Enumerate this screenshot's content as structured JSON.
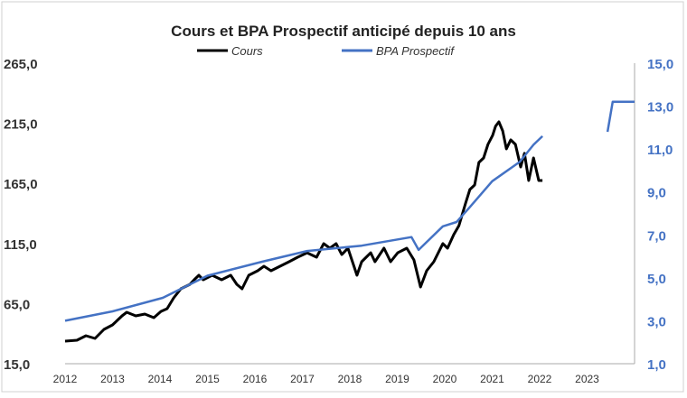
{
  "chart_data": {
    "type": "line",
    "title": "Cours et BPA Prospectif anticipé depuis 10 ans",
    "legend_position": "top",
    "grid": false,
    "x_ticks": [
      "2012",
      "2013",
      "2014",
      "2015",
      "2016",
      "2017",
      "2018",
      "2019",
      "2020",
      "2021",
      "2022",
      "2023"
    ],
    "xlim": [
      2012,
      2024
    ],
    "y_left": {
      "ylim": [
        15,
        265
      ],
      "ticks": [
        "15,0",
        "65,0",
        "115,0",
        "165,0",
        "215,0",
        "265,0"
      ],
      "values": [
        15,
        65,
        115,
        165,
        215,
        265
      ]
    },
    "y_right": {
      "ylim": [
        1,
        15
      ],
      "ticks": [
        "1,0",
        "3,0",
        "5,0",
        "7,0",
        "9,0",
        "11,0",
        "13,0",
        "15,0"
      ],
      "values": [
        1,
        3,
        5,
        7,
        9,
        11,
        13,
        15
      ],
      "color": "#4472C4"
    },
    "series": [
      {
        "name": "Cours",
        "axis": "left",
        "color": "#000000",
        "x": [
          2012.0,
          2012.25,
          2012.44,
          2012.63,
          2012.82,
          2013.0,
          2013.2,
          2013.3,
          2013.49,
          2013.68,
          2013.87,
          2014.02,
          2014.15,
          2014.29,
          2014.44,
          2014.63,
          2014.72,
          2014.82,
          2014.91,
          2015.1,
          2015.3,
          2015.49,
          2015.62,
          2015.73,
          2015.87,
          2016.06,
          2016.19,
          2016.34,
          2016.53,
          2016.72,
          2016.9,
          2017.1,
          2017.3,
          2017.45,
          2017.58,
          2017.71,
          2017.83,
          2017.96,
          2018.15,
          2018.25,
          2018.44,
          2018.53,
          2018.72,
          2018.86,
          2019.01,
          2019.2,
          2019.35,
          2019.49,
          2019.62,
          2019.77,
          2019.96,
          2020.06,
          2020.19,
          2020.3,
          2020.44,
          2020.53,
          2020.63,
          2020.72,
          2020.82,
          2020.91,
          2021.01,
          2021.07,
          2021.14,
          2021.22,
          2021.3,
          2021.39,
          2021.49,
          2021.6,
          2021.68,
          2021.77,
          2021.87,
          2021.98,
          2022.06
        ],
        "y": [
          33.8,
          34.5,
          38.3,
          36,
          43.5,
          47.3,
          54.8,
          57.8,
          54.8,
          56.3,
          53.3,
          58.5,
          60.8,
          69.8,
          77.3,
          81,
          84.8,
          88.6,
          84.8,
          88.6,
          84.8,
          88.6,
          81,
          77.3,
          88.6,
          92.3,
          96.1,
          92.3,
          96.1,
          99.8,
          103.6,
          107.3,
          103.6,
          114.9,
          111.1,
          114.9,
          105.8,
          111.1,
          88.6,
          99.8,
          107.3,
          99.8,
          111.1,
          99.8,
          107.3,
          111.1,
          101.3,
          78.8,
          92.3,
          99.8,
          114.9,
          111.1,
          122.4,
          129.9,
          148.6,
          159.9,
          163.7,
          182.4,
          186.2,
          197.4,
          205,
          212.5,
          216.2,
          208.7,
          193.7,
          201.2,
          197.4,
          178.7,
          190,
          167.4,
          186.2,
          167.4,
          167.4
        ]
      },
      {
        "name": "BPA Prospectif",
        "axis": "right",
        "color": "#4472C4",
        "x": [
          2012.0,
          2013.0,
          2014.06,
          2015.0,
          2016.15,
          2017.1,
          2018.25,
          2019.3,
          2019.45,
          2019.96,
          2020.25,
          2020.53,
          2021.0,
          2021.58,
          2021.87,
          2022.06,
          2022.51,
          2023.43,
          2023.54,
          2024.0
        ],
        "y": [
          3.0,
          3.44,
          4.07,
          5.1,
          5.75,
          6.25,
          6.5,
          6.9,
          6.3,
          7.4,
          7.6,
          8.3,
          9.5,
          10.4,
          11.2,
          11.6,
          null,
          11.8,
          13.2,
          13.2
        ],
        "segments_after_gap": {
          "x": [
            2022.51,
            2023.43,
            2023.54,
            2024.0
          ],
          "y": [
            11.8,
            11.8,
            13.2,
            13.2
          ]
        }
      }
    ]
  }
}
